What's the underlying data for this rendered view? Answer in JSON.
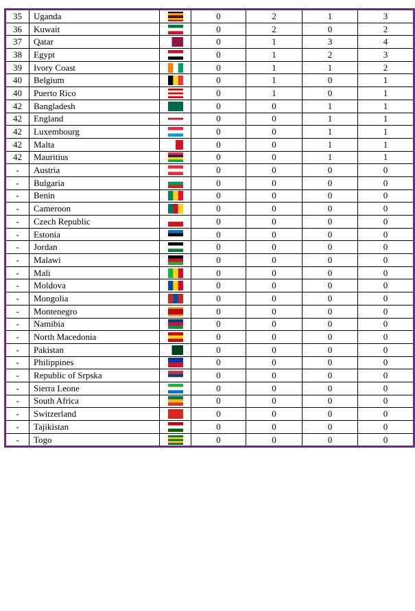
{
  "table": {
    "rows": [
      [
        "35",
        "Uganda",
        0,
        2,
        1,
        3
      ],
      [
        "36",
        "Kuwait",
        0,
        2,
        0,
        2
      ],
      [
        "37",
        "Qatar",
        0,
        1,
        3,
        4
      ],
      [
        "38",
        "Egypt",
        0,
        1,
        2,
        3
      ],
      [
        "39",
        "Ivory Coast",
        0,
        1,
        1,
        2
      ],
      [
        "40",
        "Belgium",
        0,
        1,
        0,
        1
      ],
      [
        "40",
        "Puerto Rico",
        0,
        1,
        0,
        1
      ],
      [
        "42",
        "Bangladesh",
        0,
        0,
        1,
        1
      ],
      [
        "42",
        "England",
        0,
        0,
        1,
        1
      ],
      [
        "42",
        "Luxembourg",
        0,
        0,
        1,
        1
      ],
      [
        "42",
        "Malta",
        0,
        0,
        1,
        1
      ],
      [
        "42",
        "Mauritius",
        0,
        0,
        1,
        1
      ],
      [
        "-",
        "Austria",
        0,
        0,
        0,
        0
      ],
      [
        "-",
        "Bulgaria",
        0,
        0,
        0,
        0
      ],
      [
        "-",
        "Benin",
        0,
        0,
        0,
        0
      ],
      [
        "-",
        "Cameroon",
        0,
        0,
        0,
        0
      ],
      [
        "-",
        "Czech Republic",
        0,
        0,
        0,
        0
      ],
      [
        "-",
        "Estonia",
        0,
        0,
        0,
        0
      ],
      [
        "-",
        "Jordan",
        0,
        0,
        0,
        0
      ],
      [
        "-",
        "Malawi",
        0,
        0,
        0,
        0
      ],
      [
        "-",
        "Mali",
        0,
        0,
        0,
        0
      ],
      [
        "-",
        "Moldova",
        0,
        0,
        0,
        0
      ],
      [
        "-",
        "Mongolia",
        0,
        0,
        0,
        0
      ],
      [
        "-",
        "Montenegro",
        0,
        0,
        0,
        0
      ],
      [
        "-",
        "Namibia",
        0,
        0,
        0,
        0
      ],
      [
        "-",
        "North Macedonia",
        0,
        0,
        0,
        0
      ],
      [
        "-",
        "Pakistan",
        0,
        0,
        0,
        0
      ],
      [
        "-",
        "Philippines",
        0,
        0,
        0,
        0
      ],
      [
        "-",
        "Republic of Srpska",
        0,
        0,
        0,
        0
      ],
      [
        "-",
        "Sierra Leone",
        0,
        0,
        0,
        0
      ],
      [
        "-",
        "South Africa",
        0,
        0,
        0,
        0
      ],
      [
        "-",
        "Switzerland",
        0,
        0,
        0,
        0
      ],
      [
        "-",
        "Tajikistan",
        0,
        0,
        0,
        0
      ],
      [
        "-",
        "Togo",
        0,
        0,
        0,
        0
      ]
    ]
  }
}
